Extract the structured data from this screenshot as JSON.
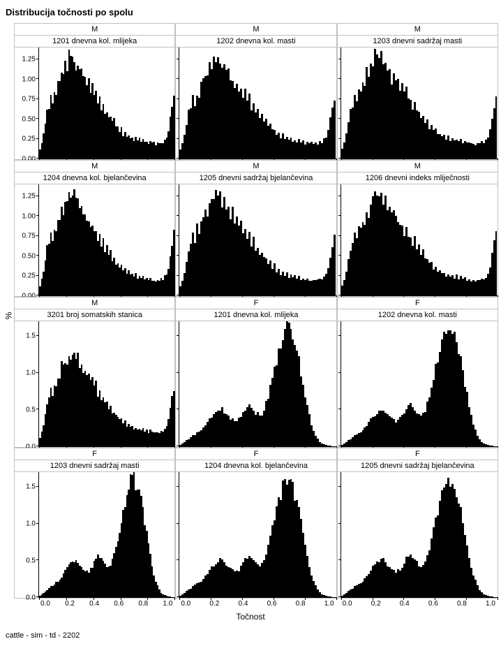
{
  "title": "Distribucija točnosti po spolu",
  "xlabel": "Točnost",
  "ylabel": "%",
  "footer": "cattle - sim - td - 2202",
  "bar_color": "#000000",
  "border_color": "#c0c0c0",
  "axis_color": "#000000",
  "background_color": "#ffffff",
  "font_family": "Arial",
  "title_fontsize": 13,
  "strip_fontsize": 11,
  "tick_fontsize": 10,
  "label_fontsize": 12,
  "xticks": [
    "0.0",
    "0.2",
    "0.4",
    "0.6",
    "0.8",
    "1.0"
  ],
  "xlim": [
    0.0,
    1.0
  ],
  "rows12_yticks": [
    "0.00",
    "0.25",
    "0.50",
    "0.75",
    "1.00",
    "1.25"
  ],
  "rows12_ylim": [
    0.0,
    1.4
  ],
  "rows34_yticks": [
    "0.0",
    "0.5",
    "1.0",
    "1.5"
  ],
  "rows34_ylim": [
    0.0,
    1.7
  ],
  "shape_M": [
    0.12,
    0.2,
    0.3,
    0.45,
    0.6,
    0.65,
    0.75,
    0.7,
    0.85,
    0.8,
    0.92,
    0.95,
    1.1,
    1.05,
    1.2,
    1.18,
    1.3,
    1.25,
    1.22,
    1.28,
    1.15,
    1.2,
    1.08,
    1.12,
    1.0,
    1.05,
    0.95,
    0.98,
    0.88,
    0.92,
    0.8,
    0.85,
    0.72,
    0.78,
    0.65,
    0.7,
    0.58,
    0.62,
    0.52,
    0.55,
    0.45,
    0.48,
    0.4,
    0.42,
    0.35,
    0.38,
    0.3,
    0.33,
    0.27,
    0.3,
    0.25,
    0.28,
    0.23,
    0.26,
    0.22,
    0.25,
    0.21,
    0.23,
    0.2,
    0.22,
    0.19,
    0.21,
    0.19,
    0.2,
    0.18,
    0.2,
    0.19,
    0.21,
    0.2,
    0.24,
    0.28,
    0.35,
    0.5,
    0.65,
    0.78
  ],
  "shape_F": [
    0.02,
    0.04,
    0.06,
    0.08,
    0.1,
    0.12,
    0.14,
    0.16,
    0.18,
    0.2,
    0.22,
    0.25,
    0.28,
    0.32,
    0.36,
    0.4,
    0.43,
    0.46,
    0.48,
    0.5,
    0.5,
    0.48,
    0.45,
    0.42,
    0.38,
    0.36,
    0.35,
    0.36,
    0.38,
    0.42,
    0.47,
    0.52,
    0.55,
    0.56,
    0.54,
    0.5,
    0.46,
    0.44,
    0.43,
    0.45,
    0.5,
    0.58,
    0.68,
    0.8,
    0.92,
    1.05,
    1.18,
    1.3,
    1.4,
    1.5,
    1.58,
    1.62,
    1.6,
    1.55,
    1.48,
    1.4,
    1.3,
    1.15,
    1.0,
    0.85,
    0.7,
    0.55,
    0.42,
    0.3,
    0.22,
    0.15,
    0.1,
    0.06,
    0.04,
    0.03,
    0.02,
    0.01,
    0.01,
    0.0,
    0.0
  ],
  "panels": [
    {
      "row": 1,
      "col": 1,
      "sex": "M",
      "trait": "1201 dnevna kol. mlijeka",
      "shape": "M",
      "ymax": 1.4,
      "yticks": "rows12"
    },
    {
      "row": 1,
      "col": 2,
      "sex": "M",
      "trait": "1202 dnevna kol. masti",
      "shape": "M",
      "ymax": 1.4,
      "yticks": "rows12"
    },
    {
      "row": 1,
      "col": 3,
      "sex": "M",
      "trait": "1203 dnevni sadržaj masti",
      "shape": "M",
      "ymax": 1.4,
      "yticks": "rows12"
    },
    {
      "row": 2,
      "col": 1,
      "sex": "M",
      "trait": "1204 dnevna kol. bjelančevina",
      "shape": "M",
      "ymax": 1.4,
      "yticks": "rows12"
    },
    {
      "row": 2,
      "col": 2,
      "sex": "M",
      "trait": "1205 dnevni sadržaj bjelančevina",
      "shape": "M",
      "ymax": 1.4,
      "yticks": "rows12"
    },
    {
      "row": 2,
      "col": 3,
      "sex": "M",
      "trait": "1206 dnevni indeks mliječnosti",
      "shape": "M",
      "ymax": 1.4,
      "yticks": "rows12"
    },
    {
      "row": 3,
      "col": 1,
      "sex": "M",
      "trait": "3201 broj somatskih stanica",
      "shape": "M",
      "ymax": 1.7,
      "yticks": "rows34"
    },
    {
      "row": 3,
      "col": 2,
      "sex": "F",
      "trait": "1201 dnevna kol. mlijeka",
      "shape": "F",
      "ymax": 1.7,
      "yticks": "rows34"
    },
    {
      "row": 3,
      "col": 3,
      "sex": "F",
      "trait": "1202 dnevna kol. masti",
      "shape": "F",
      "ymax": 1.7,
      "yticks": "rows34"
    },
    {
      "row": 4,
      "col": 1,
      "sex": "F",
      "trait": "1203 dnevni sadržaj masti",
      "shape": "F",
      "ymax": 1.7,
      "yticks": "rows34"
    },
    {
      "row": 4,
      "col": 2,
      "sex": "F",
      "trait": "1204 dnevna kol. bjelančevina",
      "shape": "F",
      "ymax": 1.7,
      "yticks": "rows34"
    },
    {
      "row": 4,
      "col": 3,
      "sex": "F",
      "trait": "1205 dnevni sadržaj bjelančevina",
      "shape": "F",
      "ymax": 1.7,
      "yticks": "rows34"
    }
  ]
}
